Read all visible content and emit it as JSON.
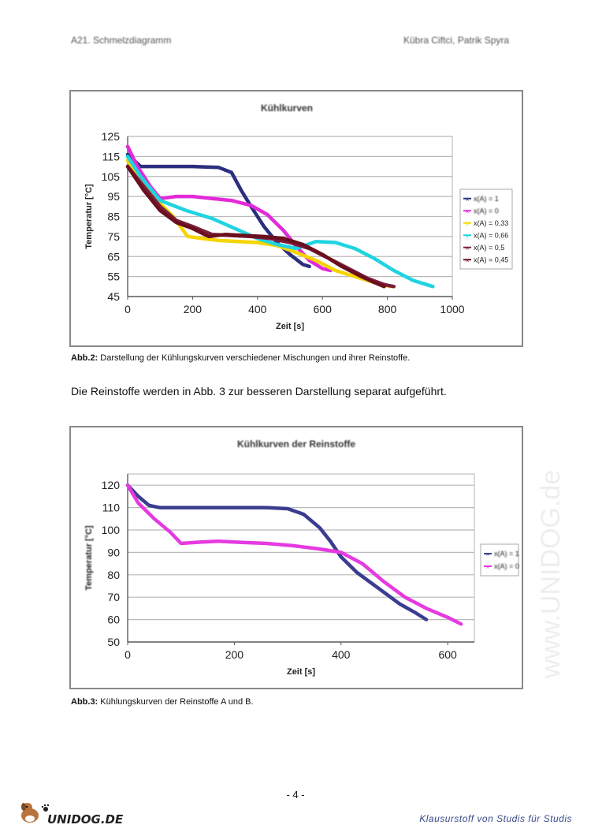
{
  "header": {
    "left": "A21. Schmelzdiagramm",
    "right": "Kübra Ciftci, Patrik Spyra"
  },
  "paragraph": "Die Reinstoffe werden in Abb. 3 zur besseren Darstellung separat aufgeführt.",
  "captions": [
    {
      "label": "Abb.2:",
      "text": " Darstellung der Kühlungskurven verschiedener Mischungen und ihrer Reinstoffe."
    },
    {
      "label": "Abb.3:",
      "text": " Kühlungskurven der Reinstoffe A und B."
    }
  ],
  "page_number": "- 4 -",
  "footer": {
    "tagline": "Klausurstoff  von  Studis  für  Studis",
    "logo": "UNIDOG.DE"
  },
  "watermark": "www.UNIDOG.de",
  "chart_data": [
    {
      "type": "line",
      "title": "Kühlkurven",
      "xlabel": "Zeit [s]",
      "ylabel": "Temperatur [°C]",
      "xlim": [
        0,
        1000
      ],
      "ylim": [
        45,
        125
      ],
      "xticks": [
        0,
        200,
        400,
        600,
        800,
        1000
      ],
      "yticks": [
        45,
        55,
        65,
        75,
        85,
        95,
        105,
        115,
        125
      ],
      "grid": true,
      "legend": "right",
      "series": [
        {
          "name": "x(A) = 1",
          "color": "#2b2f7e",
          "points": [
            [
              0,
              116
            ],
            [
              40,
              110
            ],
            [
              100,
              110
            ],
            [
              200,
              110
            ],
            [
              280,
              109.5
            ],
            [
              320,
              107
            ],
            [
              350,
              98
            ],
            [
              380,
              90
            ],
            [
              420,
              80
            ],
            [
              460,
              72
            ],
            [
              500,
              66
            ],
            [
              540,
              61
            ],
            [
              560,
              60
            ]
          ]
        },
        {
          "name": "x(A) = 0",
          "color": "#e32ad8",
          "points": [
            [
              0,
              120
            ],
            [
              30,
              110
            ],
            [
              70,
              100
            ],
            [
              100,
              94
            ],
            [
              150,
              95
            ],
            [
              200,
              95
            ],
            [
              260,
              94
            ],
            [
              320,
              93
            ],
            [
              380,
              90.5
            ],
            [
              430,
              86
            ],
            [
              480,
              78
            ],
            [
              520,
              70
            ],
            [
              560,
              63
            ],
            [
              600,
              59
            ],
            [
              625,
              58
            ]
          ]
        },
        {
          "name": "x(A) = 0,33",
          "color": "#f5d400",
          "points": [
            [
              0,
              113
            ],
            [
              40,
              103
            ],
            [
              90,
              93
            ],
            [
              140,
              85
            ],
            [
              185,
              75
            ],
            [
              230,
              74
            ],
            [
              280,
              73
            ],
            [
              340,
              72.5
            ],
            [
              400,
              72
            ],
            [
              460,
              70.5
            ],
            [
              520,
              67
            ],
            [
              580,
              63
            ],
            [
              640,
              58
            ],
            [
              700,
              55
            ],
            [
              760,
              52
            ],
            [
              810,
              50
            ]
          ]
        },
        {
          "name": "x(A) = 0,66",
          "color": "#1fd4e0",
          "points": [
            [
              0,
              115
            ],
            [
              40,
              105
            ],
            [
              100,
              93
            ],
            [
              180,
              88
            ],
            [
              260,
              84
            ],
            [
              330,
              79
            ],
            [
              400,
              74
            ],
            [
              460,
              71
            ],
            [
              520,
              69
            ],
            [
              580,
              72.5
            ],
            [
              640,
              72
            ],
            [
              700,
              69
            ],
            [
              760,
              64
            ],
            [
              820,
              58
            ],
            [
              880,
              53
            ],
            [
              940,
              50
            ]
          ]
        },
        {
          "name": "x(A) = 0,5",
          "color": "#7a1e3a",
          "points": [
            [
              0,
              110
            ],
            [
              50,
              100
            ],
            [
              100,
              90
            ],
            [
              150,
              83
            ],
            [
              200,
              80
            ],
            [
              260,
              76
            ],
            [
              320,
              75.5
            ],
            [
              380,
              75
            ],
            [
              440,
              74
            ],
            [
              500,
              72
            ],
            [
              560,
              69
            ],
            [
              620,
              64
            ],
            [
              680,
              59
            ],
            [
              740,
              54
            ],
            [
              790,
              51
            ],
            [
              820,
              50
            ]
          ]
        },
        {
          "name": "x(A) = 0,45",
          "color": "#6b0f1f",
          "points": [
            [
              0,
              110
            ],
            [
              50,
              98
            ],
            [
              100,
              88
            ],
            [
              150,
              82
            ],
            [
              200,
              79
            ],
            [
              250,
              75
            ],
            [
              300,
              76
            ],
            [
              360,
              75.5
            ],
            [
              420,
              75
            ],
            [
              480,
              74
            ],
            [
              540,
              71
            ],
            [
              600,
              66
            ],
            [
              660,
              60
            ],
            [
              720,
              55
            ],
            [
              760,
              52
            ],
            [
              790,
              50
            ]
          ]
        }
      ]
    },
    {
      "type": "line",
      "title": "Kühlkurven der Reinstoffe",
      "xlabel": "Zeit [s]",
      "ylabel": "Temperatur [°C]",
      "xlim": [
        0,
        650
      ],
      "ylim": [
        50,
        125
      ],
      "xticks": [
        0,
        200,
        400,
        600
      ],
      "yticks": [
        50,
        60,
        70,
        80,
        90,
        100,
        110,
        120
      ],
      "grid": true,
      "legend": "right",
      "series": [
        {
          "name": "x(A) = 1",
          "color": "#3a3d8f",
          "points": [
            [
              0,
              120
            ],
            [
              20,
              115
            ],
            [
              40,
              111
            ],
            [
              60,
              110
            ],
            [
              100,
              110
            ],
            [
              200,
              110
            ],
            [
              260,
              110
            ],
            [
              300,
              109.5
            ],
            [
              330,
              107
            ],
            [
              360,
              101
            ],
            [
              380,
              95
            ],
            [
              400,
              88
            ],
            [
              430,
              81
            ],
            [
              470,
              74
            ],
            [
              510,
              67
            ],
            [
              540,
              63
            ],
            [
              560,
              60
            ]
          ]
        },
        {
          "name": "x(A) = 0",
          "color": "#e53ae0",
          "points": [
            [
              0,
              120
            ],
            [
              20,
              112
            ],
            [
              50,
              105
            ],
            [
              80,
              99
            ],
            [
              100,
              94
            ],
            [
              130,
              94.5
            ],
            [
              170,
              95
            ],
            [
              210,
              94.5
            ],
            [
              260,
              94
            ],
            [
              310,
              93
            ],
            [
              360,
              91.5
            ],
            [
              400,
              90
            ],
            [
              440,
              85
            ],
            [
              480,
              77
            ],
            [
              520,
              70
            ],
            [
              560,
              65
            ],
            [
              600,
              61
            ],
            [
              625,
              58
            ]
          ]
        }
      ]
    }
  ]
}
